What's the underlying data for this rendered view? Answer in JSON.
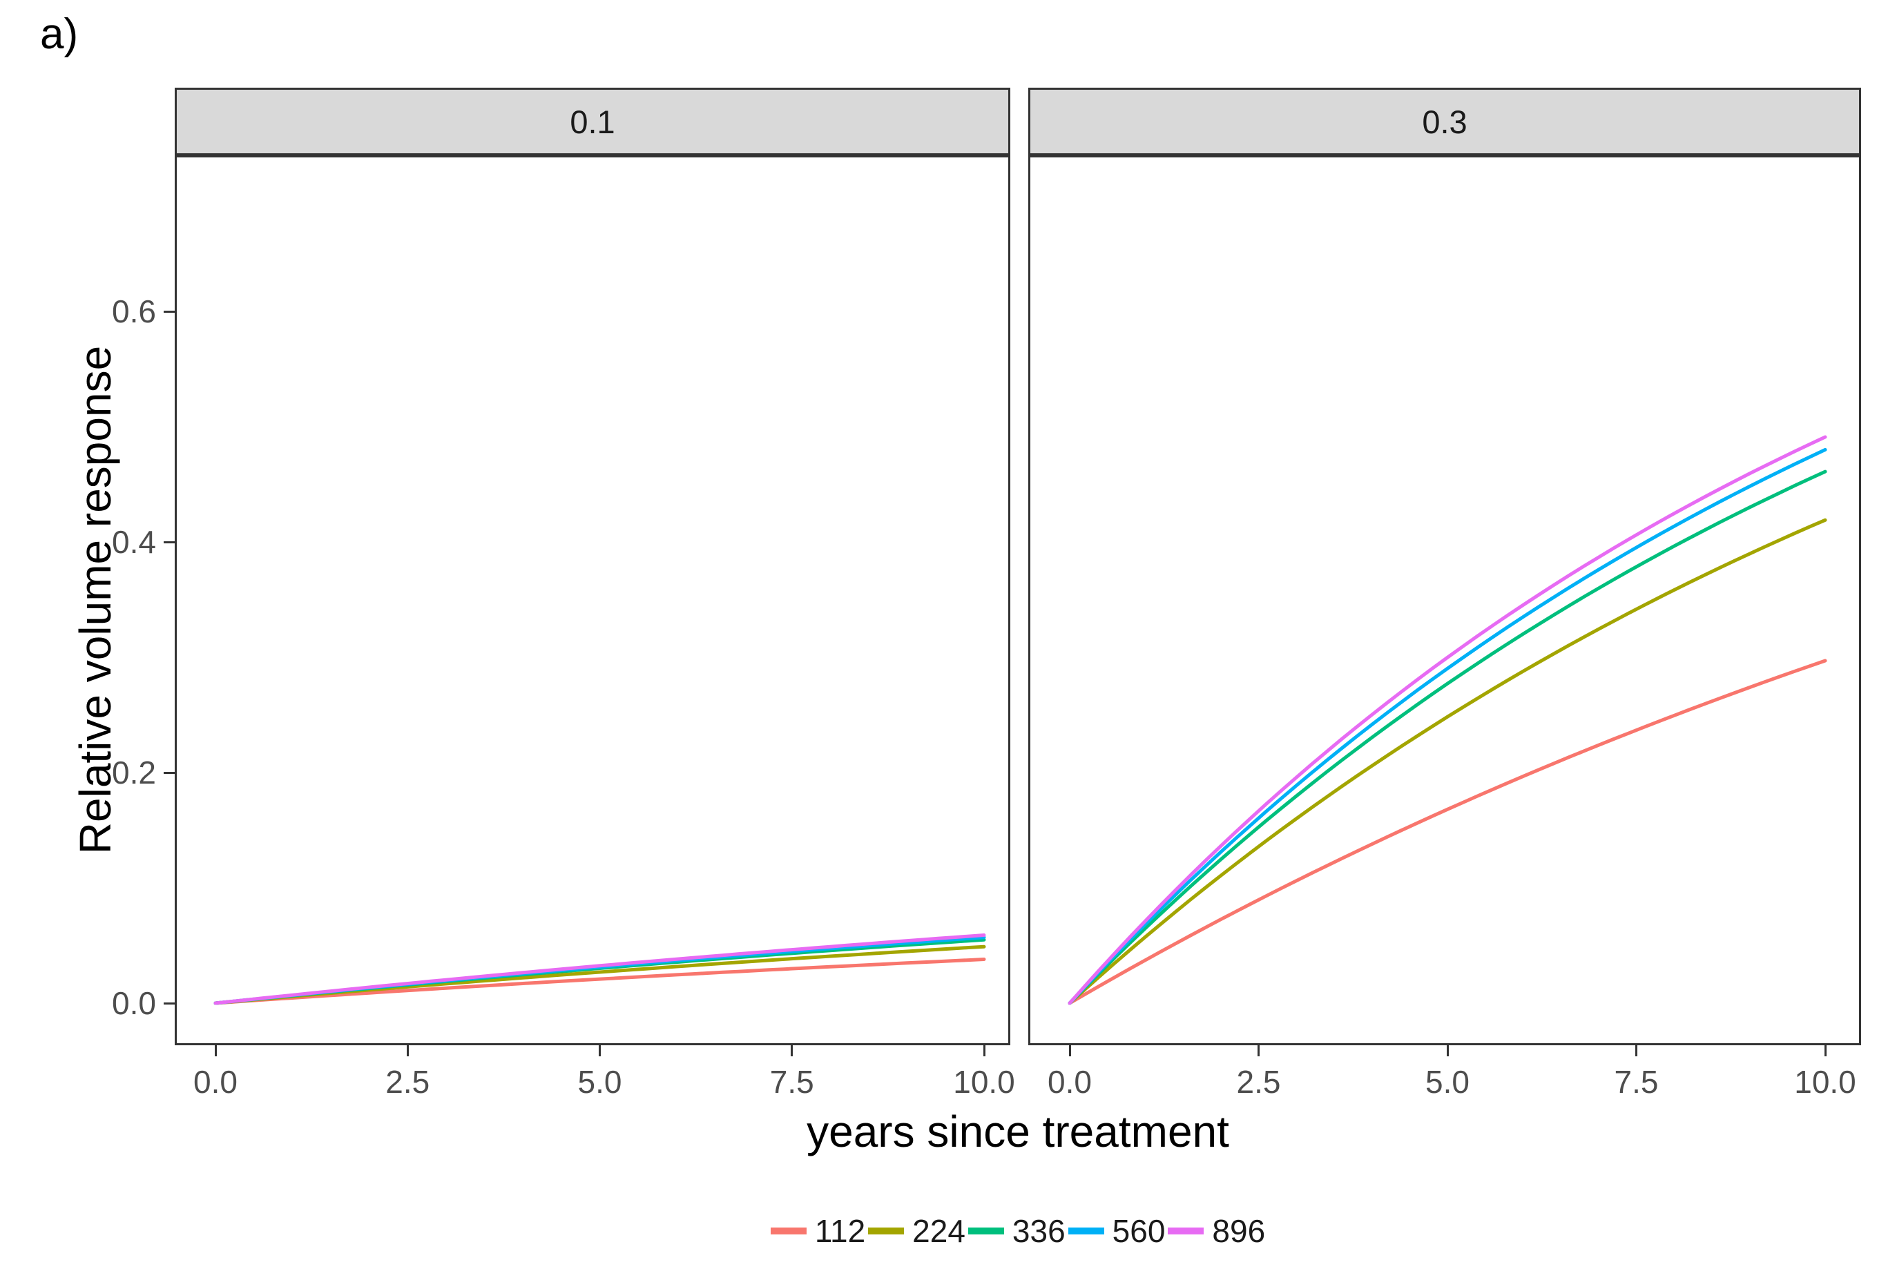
{
  "figure_label": "a)",
  "axes": {
    "y": {
      "title": "Relative volume response",
      "tick_labels": [
        "0.0",
        "0.2",
        "0.4",
        "0.6"
      ],
      "tick_values": [
        0,
        0.2,
        0.4,
        0.6
      ]
    },
    "x": {
      "title": "years since treatment",
      "tick_labels": [
        "0.0",
        "2.5",
        "5.0",
        "7.5",
        "10.0"
      ],
      "tick_values": [
        0,
        2.5,
        5,
        7.5,
        10
      ]
    }
  },
  "facets": [
    {
      "label": "0.1"
    },
    {
      "label": "0.3"
    }
  ],
  "legend": {
    "position": "bottom",
    "items": [
      {
        "label": "112",
        "color": "#F8766D"
      },
      {
        "label": "224",
        "color": "#A3A500"
      },
      {
        "label": "336",
        "color": "#00BF7D"
      },
      {
        "label": "560",
        "color": "#00B0F6"
      },
      {
        "label": "896",
        "color": "#E76BF3"
      }
    ]
  },
  "colors": {
    "strip_background": "#D9D9D9",
    "panel_border": "#333333",
    "tick_label": "#4D4D4D"
  },
  "chart_data": {
    "type": "line",
    "title": "a)",
    "xlabel": "years since treatment",
    "ylabel": "Relative volume response",
    "xlim": [
      0,
      10
    ],
    "ylim": [
      -0.037,
      0.735
    ],
    "y_ticks": [
      0,
      0.2,
      0.4,
      0.6
    ],
    "x_ticks": [
      0,
      2.5,
      5,
      7.5,
      10
    ],
    "grid": "off",
    "legend_position": "bottom",
    "facet_labels": [
      "0.1",
      "0.3"
    ],
    "x": [
      0,
      2.5,
      5,
      7.5,
      10
    ],
    "facets": [
      {
        "label": "0.1",
        "series": [
          {
            "name": "112",
            "values": [
              0,
              0.011,
              0.021,
              0.03,
              0.038
            ]
          },
          {
            "name": "224",
            "values": [
              0,
              0.014,
              0.027,
              0.039,
              0.049
            ]
          },
          {
            "name": "336",
            "values": [
              0,
              0.016,
              0.03,
              0.043,
              0.055
            ]
          },
          {
            "name": "560",
            "values": [
              0,
              0.016,
              0.031,
              0.045,
              0.057
            ]
          },
          {
            "name": "896",
            "values": [
              0,
              0.017,
              0.032,
              0.046,
              0.059
            ]
          }
        ]
      },
      {
        "label": "0.3",
        "series": [
          {
            "name": "112",
            "values": [
              0,
              0.084,
              0.168,
              0.236,
              0.297
            ]
          },
          {
            "name": "224",
            "values": [
              0,
              0.136,
              0.248,
              0.34,
              0.419
            ]
          },
          {
            "name": "336",
            "values": [
              0,
              0.153,
              0.277,
              0.377,
              0.461
            ]
          },
          {
            "name": "560",
            "values": [
              0,
              0.16,
              0.29,
              0.395,
              0.48
            ]
          },
          {
            "name": "896",
            "values": [
              0,
              0.167,
              0.3,
              0.406,
              0.491
            ]
          }
        ]
      }
    ],
    "render": {
      "curvature_r": [
        [
          0.04,
          0.04,
          0.04,
          0.04,
          0.04
        ],
        [
          0.053,
          0.075,
          0.082,
          0.085,
          0.09
        ]
      ],
      "line_width": 5
    }
  }
}
